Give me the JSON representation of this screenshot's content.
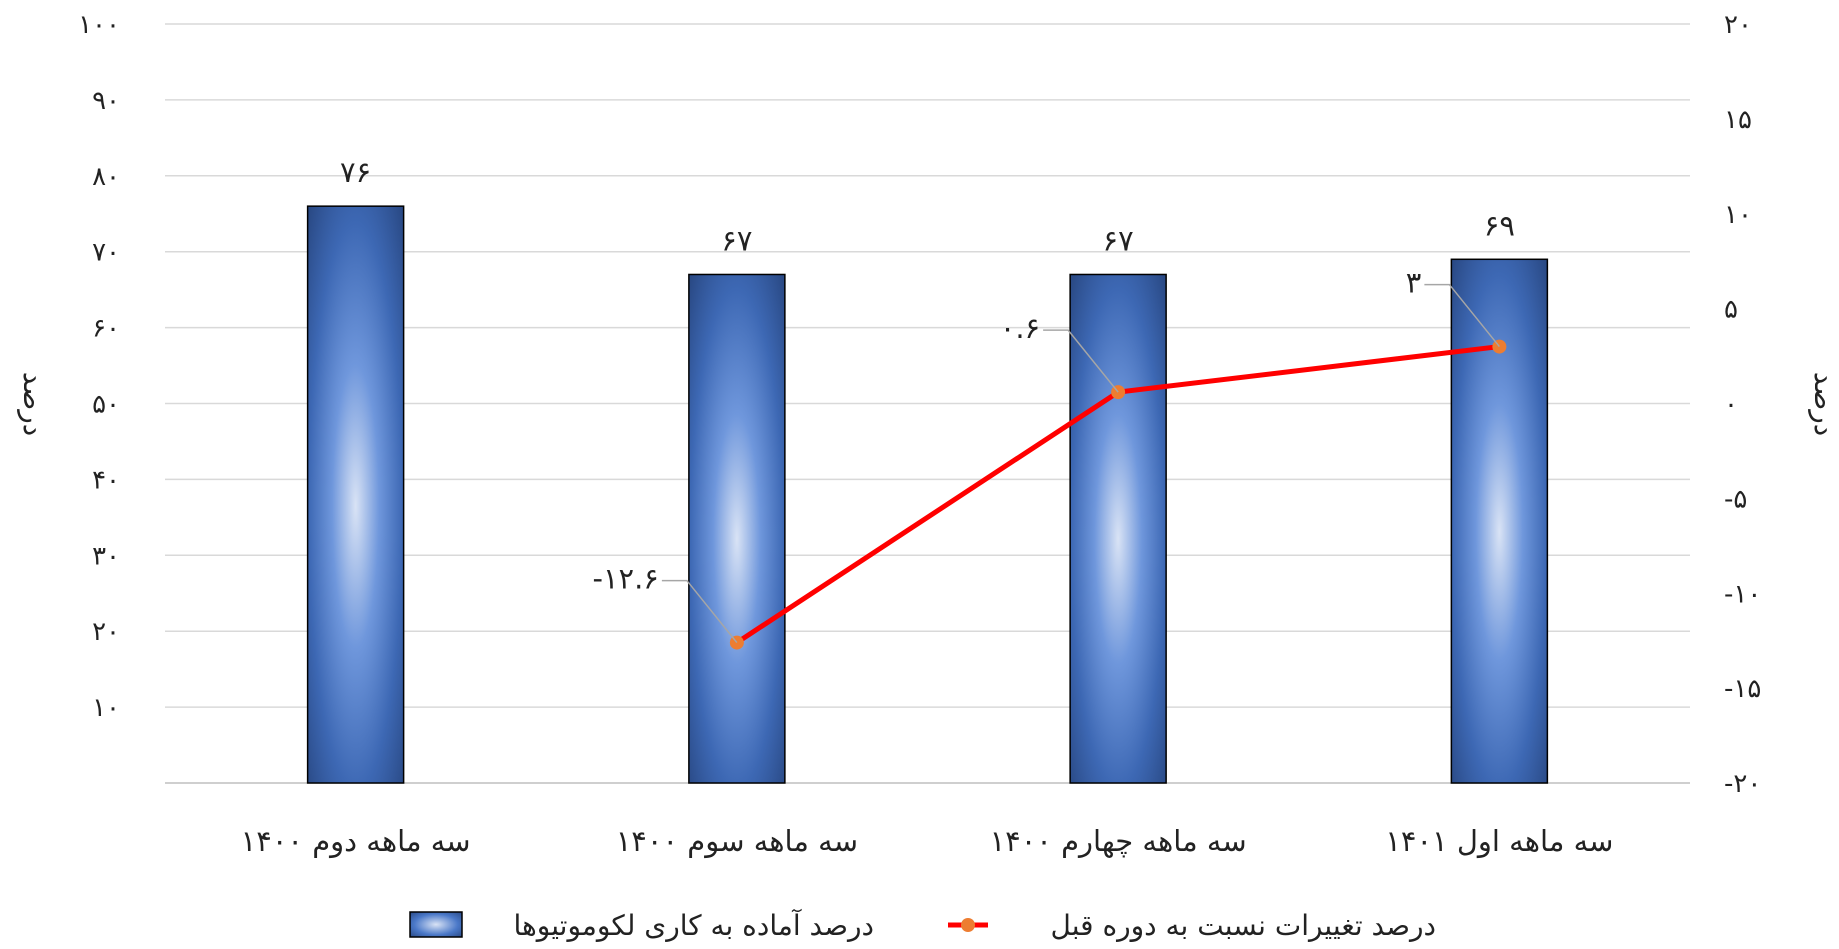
{
  "chart_data": {
    "type": "bar",
    "categories": [
      "سه ماهه دوم ۱۴۰۰",
      "سه ماهه سوم ۱۴۰۰",
      "سه ماهه چهارم ۱۴۰۰",
      "سه ماهه اول ۱۴۰۱"
    ],
    "series": [
      {
        "name": "درصد آماده به کاری لکوموتیوها",
        "type": "bar",
        "axis": "left",
        "values": [
          76,
          67,
          67,
          69
        ],
        "labels": [
          "۷۶",
          "۶۷",
          "۶۷",
          "۶۹"
        ],
        "color": "#4a7bcc"
      },
      {
        "name": "درصد تغییرات نسبت به دوره قبل",
        "type": "line",
        "axis": "right",
        "values": [
          null,
          -12.6,
          0.6,
          3
        ],
        "labels": [
          null,
          "-۱۲.۶",
          "۰.۶",
          "۳"
        ],
        "color": "#ff0000",
        "marker_color": "#ed7d31"
      }
    ],
    "left_axis": {
      "title": "درصد",
      "ylim": [
        0,
        100
      ],
      "ticks": [
        10,
        20,
        30,
        40,
        50,
        60,
        70,
        80,
        90,
        100
      ],
      "tick_labels": [
        "۱۰",
        "۲۰",
        "۳۰",
        "۴۰",
        "۵۰",
        "۶۰",
        "۷۰",
        "۸۰",
        "۹۰",
        "۱۰۰"
      ]
    },
    "right_axis": {
      "title": "درصد",
      "ylim": [
        -20,
        20
      ],
      "ticks": [
        -20,
        -15,
        -10,
        -5,
        0,
        5,
        10,
        15,
        20
      ],
      "tick_labels": [
        "-۲۰",
        "-۱۵",
        "-۱۰",
        "-۵",
        "۰",
        "۵",
        "۱۰",
        "۱۵",
        "۲۰"
      ]
    },
    "grid": true,
    "legend_position": "bottom"
  }
}
